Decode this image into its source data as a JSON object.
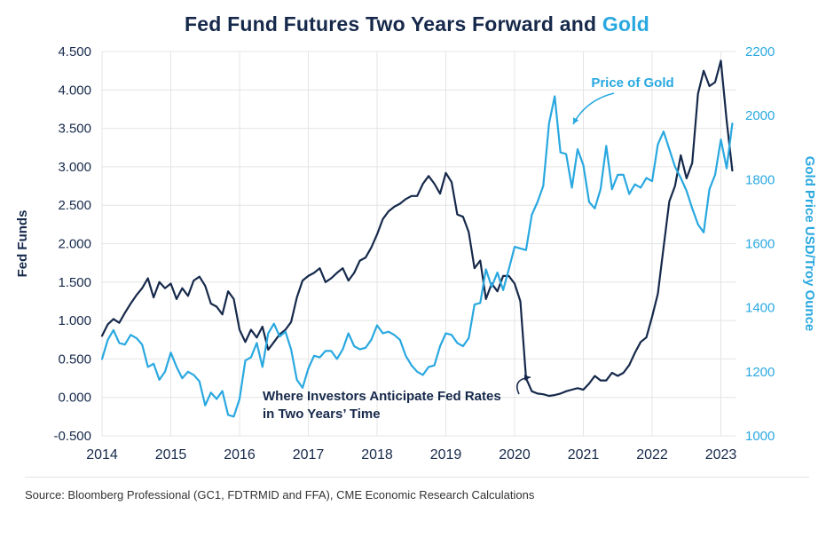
{
  "title": {
    "main": "Fed Fund Futures Two Years Forward and ",
    "highlight": "Gold"
  },
  "source": "Source: Bloomberg Professional (GC1, FDTRMID and FFA), CME Economic Research Calculations",
  "colors": {
    "navy": "#16294B",
    "blue": "#29A8E0",
    "grid": "#E4E4E4",
    "axis_text": "#16294B"
  },
  "chart_data": {
    "type": "line",
    "title": "Fed Fund Futures Two Years Forward and Gold",
    "grid": true,
    "x_ticks": [
      2014,
      2015,
      2016,
      2017,
      2018,
      2019,
      2020,
      2021,
      2022,
      2023
    ],
    "x_range": [
      2014,
      2023.25
    ],
    "left_axis": {
      "label": "Fed Funds",
      "min": -0.5,
      "max": 4.5,
      "tick_values": [
        4.5,
        4.0,
        3.5,
        3.0,
        2.5,
        2.0,
        1.5,
        1.0,
        0.5,
        0.0,
        -0.5
      ],
      "tick_labels": [
        "4.500",
        "4.000",
        "3.500",
        "3.000",
        "2.500",
        "2.000",
        "1.500",
        "1.000",
        "0.500",
        "0.000",
        "-0.500"
      ]
    },
    "right_axis": {
      "label": "Gold Price USD/Troy Ounce",
      "min": 1000,
      "max": 2200,
      "tick_values": [
        2200,
        2000,
        1800,
        1600,
        1400,
        1200,
        1000
      ],
      "tick_labels": [
        "2200",
        "2000",
        "1800",
        "1600",
        "1400",
        "1200",
        "1000"
      ]
    },
    "annotations": [
      {
        "id": "gold-annotation",
        "text": "Price of Gold",
        "color_key": "blue"
      },
      {
        "id": "fed-annotation",
        "text_lines": [
          "Where Investors Anticipate Fed Rates",
          "in Two Years’ Time"
        ],
        "color_key": "navy"
      }
    ],
    "series": [
      {
        "name": "Fed Fund Futures Two Years Forward",
        "axis": "left",
        "color_key": "navy",
        "start_year": 2014,
        "frequency": "monthly",
        "values": [
          0.8,
          0.95,
          1.02,
          0.97,
          1.1,
          1.22,
          1.33,
          1.42,
          1.55,
          1.3,
          1.5,
          1.42,
          1.48,
          1.28,
          1.42,
          1.32,
          1.52,
          1.57,
          1.45,
          1.22,
          1.18,
          1.08,
          1.38,
          1.28,
          0.88,
          0.72,
          0.88,
          0.78,
          0.92,
          0.62,
          0.72,
          0.82,
          0.88,
          0.98,
          1.3,
          1.52,
          1.58,
          1.62,
          1.68,
          1.5,
          1.55,
          1.62,
          1.68,
          1.52,
          1.62,
          1.78,
          1.82,
          1.95,
          2.12,
          2.32,
          2.42,
          2.48,
          2.52,
          2.58,
          2.62,
          2.62,
          2.78,
          2.88,
          2.78,
          2.65,
          2.92,
          2.8,
          2.38,
          2.35,
          2.15,
          1.68,
          1.78,
          1.28,
          1.48,
          1.38,
          1.58,
          1.58,
          1.48,
          1.25,
          0.25,
          0.08,
          0.05,
          0.04,
          0.02,
          0.03,
          0.05,
          0.08,
          0.1,
          0.12,
          0.1,
          0.18,
          0.28,
          0.22,
          0.22,
          0.32,
          0.28,
          0.32,
          0.42,
          0.58,
          0.72,
          0.78,
          1.05,
          1.35,
          1.95,
          2.55,
          2.75,
          3.15,
          2.85,
          3.05,
          3.95,
          4.25,
          4.05,
          4.1,
          4.38,
          3.6,
          2.95
        ]
      },
      {
        "name": "Price of Gold",
        "axis": "right",
        "color_key": "blue",
        "start_year": 2014,
        "frequency": "monthly",
        "values": [
          1240,
          1300,
          1330,
          1290,
          1285,
          1315,
          1305,
          1285,
          1215,
          1225,
          1175,
          1200,
          1260,
          1215,
          1180,
          1200,
          1190,
          1170,
          1095,
          1135,
          1115,
          1140,
          1065,
          1060,
          1115,
          1235,
          1245,
          1290,
          1215,
          1320,
          1350,
          1310,
          1325,
          1270,
          1175,
          1150,
          1210,
          1250,
          1245,
          1265,
          1265,
          1240,
          1270,
          1320,
          1280,
          1270,
          1275,
          1300,
          1345,
          1320,
          1325,
          1315,
          1300,
          1250,
          1220,
          1200,
          1190,
          1215,
          1220,
          1280,
          1320,
          1315,
          1290,
          1280,
          1305,
          1410,
          1415,
          1520,
          1465,
          1510,
          1455,
          1520,
          1590,
          1585,
          1580,
          1690,
          1730,
          1780,
          1975,
          2060,
          1885,
          1880,
          1775,
          1895,
          1845,
          1730,
          1710,
          1770,
          1905,
          1770,
          1815,
          1815,
          1755,
          1785,
          1775,
          1805,
          1795,
          1910,
          1950,
          1895,
          1840,
          1805,
          1765,
          1710,
          1660,
          1635,
          1770,
          1815,
          1925,
          1835,
          1975
        ]
      }
    ]
  }
}
